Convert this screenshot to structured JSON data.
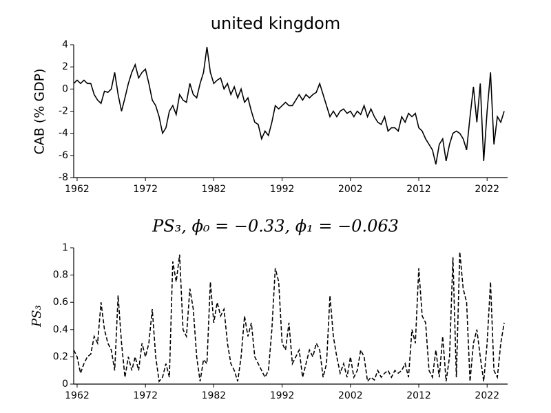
{
  "chart_data": [
    {
      "type": "line",
      "title": "united kingdom",
      "ylabel": "CAB (% GDP)",
      "x": [
        1961.5,
        1962,
        1962.5,
        1963,
        1963.5,
        1964,
        1964.5,
        1965,
        1965.5,
        1966,
        1966.5,
        1967,
        1967.5,
        1968,
        1968.5,
        1969,
        1969.5,
        1970,
        1970.5,
        1971,
        1971.5,
        1972,
        1972.5,
        1973,
        1973.5,
        1974,
        1974.5,
        1975,
        1975.5,
        1976,
        1976.5,
        1977,
        1977.5,
        1978,
        1978.5,
        1979,
        1979.5,
        1980,
        1980.5,
        1981,
        1981.5,
        1982,
        1982.5,
        1983,
        1983.5,
        1984,
        1984.5,
        1985,
        1985.5,
        1986,
        1986.5,
        1987,
        1987.5,
        1988,
        1988.5,
        1989,
        1989.5,
        1990,
        1990.5,
        1991,
        1991.5,
        1992,
        1992.5,
        1993,
        1993.5,
        1994,
        1994.5,
        1995,
        1995.5,
        1996,
        1996.5,
        1997,
        1997.5,
        1998,
        1998.5,
        1999,
        1999.5,
        2000,
        2000.5,
        2001,
        2001.5,
        2002,
        2002.5,
        2003,
        2003.5,
        2004,
        2004.5,
        2005,
        2005.5,
        2006,
        2006.5,
        2007,
        2007.5,
        2008,
        2008.5,
        2009,
        2009.5,
        2010,
        2010.5,
        2011,
        2011.5,
        2012,
        2012.5,
        2013,
        2013.5,
        2014,
        2014.5,
        2015,
        2015.5,
        2016,
        2016.5,
        2017,
        2017.5,
        2018,
        2018.5,
        2019,
        2019.5,
        2020,
        2020.5,
        2021,
        2021.5,
        2022,
        2022.5,
        2023,
        2023.5,
        2024,
        2024.5
      ],
      "series": [
        {
          "color": "#000000",
          "linestyle": "solid",
          "values": [
            0.5,
            0.8,
            0.5,
            0.8,
            0.5,
            0.5,
            -0.5,
            -1,
            -1.3,
            -0.2,
            -0.3,
            0,
            1.5,
            -0.5,
            -2,
            -0.8,
            0.5,
            1.5,
            2.2,
            1,
            1.5,
            1.8,
            0.5,
            -1,
            -1.5,
            -2.5,
            -4,
            -3.5,
            -2,
            -1.5,
            -2.3,
            -0.5,
            -1,
            -1.2,
            0.5,
            -0.5,
            -0.8,
            0.5,
            1.5,
            3.8,
            1.5,
            0.5,
            0.8,
            1,
            0,
            0.5,
            -0.5,
            0.2,
            -0.8,
            0,
            -1.2,
            -0.8,
            -2,
            -3,
            -3.2,
            -4.5,
            -3.8,
            -4.2,
            -3,
            -1.5,
            -1.8,
            -1.5,
            -1.2,
            -1.5,
            -1.5,
            -1,
            -0.5,
            -1,
            -0.5,
            -0.8,
            -0.5,
            -0.3,
            0.5,
            -0.5,
            -1.5,
            -2.5,
            -2,
            -2.5,
            -2,
            -1.8,
            -2.2,
            -2,
            -2.5,
            -2,
            -2.3,
            -1.5,
            -2.5,
            -1.8,
            -2.5,
            -3,
            -3.2,
            -2.5,
            -3.8,
            -3.5,
            -3.5,
            -3.8,
            -2.5,
            -3,
            -2.2,
            -2.5,
            -2.2,
            -3.5,
            -3.8,
            -4.5,
            -5,
            -5.5,
            -6.8,
            -5,
            -4.5,
            -6.5,
            -5,
            -4,
            -3.8,
            -4,
            -4.5,
            -5.5,
            -2.5,
            0.2,
            -3,
            0.5,
            -6.5,
            -2,
            1.5,
            -5,
            -2.5,
            -3,
            -2
          ]
        }
      ],
      "xlim": [
        1961.5,
        2025
      ],
      "xticks": [
        1962,
        1972,
        1982,
        1992,
        2002,
        2012,
        2022
      ],
      "ylim": [
        -8,
        4
      ],
      "yticks": [
        -8,
        -6,
        -4,
        -2,
        0,
        2,
        4
      ]
    },
    {
      "type": "line",
      "title": "PS₃, ϕ₀ = −0.33, ϕ₁ = −0.063",
      "ylabel": "PS₃",
      "x": [
        1961.5,
        1962,
        1962.5,
        1963,
        1963.5,
        1964,
        1964.5,
        1965,
        1965.5,
        1966,
        1966.5,
        1967,
        1967.5,
        1968,
        1968.5,
        1969,
        1969.5,
        1970,
        1970.5,
        1971,
        1971.5,
        1972,
        1972.5,
        1973,
        1973.5,
        1974,
        1974.5,
        1975,
        1975.5,
        1976,
        1976.5,
        1977,
        1977.5,
        1978,
        1978.5,
        1979,
        1979.5,
        1980,
        1980.5,
        1981,
        1981.5,
        1982,
        1982.5,
        1983,
        1983.5,
        1984,
        1984.5,
        1985,
        1985.5,
        1986,
        1986.5,
        1987,
        1987.5,
        1988,
        1988.5,
        1989,
        1989.5,
        1990,
        1990.5,
        1991,
        1991.5,
        1992,
        1992.5,
        1993,
        1993.5,
        1994,
        1994.5,
        1995,
        1995.5,
        1996,
        1996.5,
        1997,
        1997.5,
        1998,
        1998.5,
        1999,
        1999.5,
        2000,
        2000.5,
        2001,
        2001.5,
        2002,
        2002.5,
        2003,
        2003.5,
        2004,
        2004.5,
        2005,
        2005.5,
        2006,
        2006.5,
        2007,
        2007.5,
        2008,
        2008.5,
        2009,
        2009.5,
        2010,
        2010.5,
        2011,
        2011.5,
        2012,
        2012.5,
        2013,
        2013.5,
        2014,
        2014.5,
        2015,
        2015.5,
        2016,
        2016.5,
        2017,
        2017.5,
        2018,
        2018.5,
        2019,
        2019.5,
        2020,
        2020.5,
        2021,
        2021.5,
        2022,
        2022.5,
        2023,
        2023.5,
        2024,
        2024.5
      ],
      "series": [
        {
          "color": "#000000",
          "linestyle": "dashed",
          "values": [
            0.25,
            0.2,
            0.08,
            0.15,
            0.2,
            0.22,
            0.35,
            0.3,
            0.6,
            0.4,
            0.3,
            0.25,
            0.1,
            0.65,
            0.3,
            0.05,
            0.2,
            0.1,
            0.2,
            0.1,
            0.3,
            0.2,
            0.3,
            0.55,
            0.2,
            0.02,
            0.05,
            0.15,
            0.05,
            0.9,
            0.75,
            0.95,
            0.4,
            0.35,
            0.7,
            0.55,
            0.2,
            0.02,
            0.18,
            0.15,
            0.75,
            0.45,
            0.6,
            0.5,
            0.55,
            0.3,
            0.15,
            0.1,
            0.02,
            0.2,
            0.5,
            0.35,
            0.45,
            0.2,
            0.15,
            0.1,
            0.05,
            0.1,
            0.4,
            0.85,
            0.75,
            0.3,
            0.25,
            0.45,
            0.15,
            0.2,
            0.25,
            0.05,
            0.15,
            0.25,
            0.2,
            0.3,
            0.25,
            0.05,
            0.15,
            0.65,
            0.35,
            0.2,
            0.08,
            0.15,
            0.05,
            0.2,
            0.05,
            0.1,
            0.25,
            0.2,
            0.02,
            0.05,
            0.03,
            0.1,
            0.05,
            0.08,
            0.1,
            0.05,
            0.1,
            0.08,
            0.1,
            0.15,
            0.05,
            0.4,
            0.3,
            0.85,
            0.5,
            0.45,
            0.1,
            0.05,
            0.25,
            0.05,
            0.35,
            0.02,
            0.2,
            0.93,
            0.05,
            0.97,
            0.7,
            0.6,
            0.02,
            0.3,
            0.4,
            0.2,
            0.02,
            0.3,
            0.75,
            0.1,
            0.05,
            0.3,
            0.45
          ]
        }
      ],
      "xlim": [
        1961.5,
        2025
      ],
      "xticks": [
        1962,
        1972,
        1982,
        1992,
        2002,
        2012,
        2022
      ],
      "ylim": [
        0,
        1
      ],
      "yticks": [
        0,
        0.2,
        0.4,
        0.6,
        0.8,
        1
      ]
    }
  ]
}
